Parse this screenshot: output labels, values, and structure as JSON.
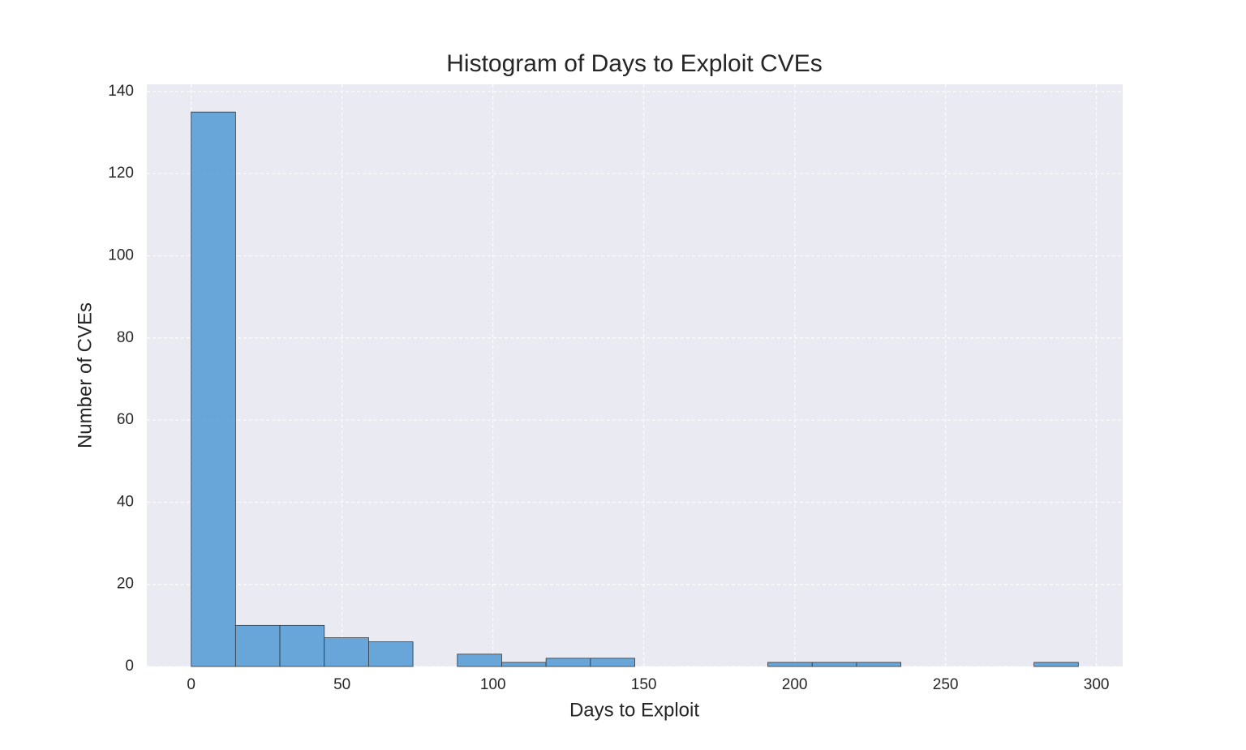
{
  "chart_data": {
    "type": "histogram",
    "title": "Histogram of Days to Exploit CVEs",
    "x_label": "Days to Exploit",
    "y_label": "Number of CVEs",
    "bins": [
      0,
      14.7,
      29.4,
      44.1,
      58.8,
      73.5,
      88.2,
      102.9,
      117.6,
      132.3,
      147,
      161.7,
      176.4,
      191.1,
      205.8,
      220.5,
      235.2,
      249.9,
      264.6,
      279.3,
      294
    ],
    "counts": [
      135,
      10,
      10,
      7,
      6,
      0,
      3,
      1,
      2,
      2,
      0,
      0,
      0,
      1,
      1,
      1,
      0,
      0,
      0,
      1
    ],
    "color": "#5a9fd6",
    "xlim": [
      -14.7,
      308.7
    ],
    "ylim": [
      0,
      141.75
    ],
    "xticks": [
      0,
      50,
      100,
      150,
      200,
      250,
      300
    ],
    "yticks": [
      0,
      20,
      40,
      60,
      80,
      100,
      120,
      140
    ],
    "grid": true
  }
}
